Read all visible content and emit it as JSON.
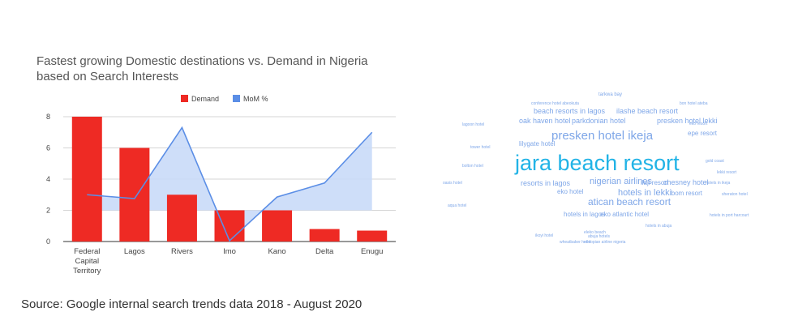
{
  "chart_data": {
    "type": "bar",
    "title_lines": [
      "Fastest growing Domestic destinations vs. Demand in Nigeria",
      "based on Search Interests"
    ],
    "categories": [
      [
        "Federal",
        "Capital",
        "Territory"
      ],
      [
        "Lagos"
      ],
      [
        "Rivers"
      ],
      [
        "Imo"
      ],
      [
        "Kano"
      ],
      [
        "Delta"
      ],
      [
        "Enugu"
      ]
    ],
    "series": [
      {
        "name": "Demand",
        "type": "bar",
        "color": "#ee2a24",
        "values": [
          8,
          6,
          3,
          2,
          2,
          0.8,
          0.7
        ]
      },
      {
        "name": "MoM %",
        "type": "line",
        "color": "#5b8ee6",
        "fill": "#c9daf8",
        "baseline": 2,
        "values": [
          3,
          2.75,
          7.3,
          0.05,
          2.85,
          3.75,
          7
        ]
      }
    ],
    "y_ticks": [
      "0",
      "2",
      "4",
      "6",
      "8"
    ],
    "ylim": [
      0,
      8.5
    ],
    "grid": true,
    "legend_position": "top"
  },
  "source": "Source: Google internal search trends data 2018 - August 2020",
  "word_cloud": {
    "color": "#7fa7e8",
    "highlight_color": "#21b3e6",
    "words": [
      {
        "text": "jara beach resort",
        "size": 27,
        "highlight": true
      },
      {
        "text": "presken hotel ikeja",
        "size": 15
      },
      {
        "text": "atican beach resort",
        "size": 12
      },
      {
        "text": "nigerian airlines",
        "size": 11
      },
      {
        "text": "hotels in lekki",
        "size": 11
      },
      {
        "text": "beach resorts in lagos",
        "size": 9
      },
      {
        "text": "ilashe beach resort",
        "size": 9
      },
      {
        "text": "oak haven hotel",
        "size": 9
      },
      {
        "text": "parkdonian hotel",
        "size": 9
      },
      {
        "text": "presken hotel lekki",
        "size": 9
      },
      {
        "text": "resorts in lagos",
        "size": 9
      },
      {
        "text": "chesney hotel",
        "size": 9
      },
      {
        "text": "lilygate hotel",
        "size": 8
      },
      {
        "text": "epe resort",
        "size": 8
      },
      {
        "text": "hotels in lagos",
        "size": 8
      },
      {
        "text": "eko atlantic hotel",
        "size": 8
      },
      {
        "text": "eko hotel",
        "size": 8
      },
      {
        "text": "ibom resort",
        "size": 8
      },
      {
        "text": "ilaji resort",
        "size": 8
      },
      {
        "text": "tarkwa bay",
        "size": 6
      },
      {
        "text": "conference hotel abeokuta",
        "size": 5
      },
      {
        "text": "bon hotel ateba",
        "size": 5
      },
      {
        "text": "lagoon hotel",
        "size": 5
      },
      {
        "text": "eko resort",
        "size": 5
      },
      {
        "text": "oasis hotel",
        "size": 5
      },
      {
        "text": "hotels in ikeja",
        "size": 5
      },
      {
        "text": "aqua hotel",
        "size": 5
      },
      {
        "text": "bolton hotel",
        "size": 5
      },
      {
        "text": "hotels in port harcourt",
        "size": 5
      },
      {
        "text": "eleko beach",
        "size": 5
      },
      {
        "text": "hotels in abuja",
        "size": 5
      },
      {
        "text": "tower hotel",
        "size": 5
      },
      {
        "text": "gold coast",
        "size": 5
      },
      {
        "text": "lekki resort",
        "size": 5
      },
      {
        "text": "sheraton hotel",
        "size": 5
      },
      {
        "text": "ikoyi hotel",
        "size": 5
      },
      {
        "text": "wheatbaker hotel",
        "size": 5
      },
      {
        "text": "abuja hotels",
        "size": 5
      },
      {
        "text": "ethiopian airline nigeria",
        "size": 5
      }
    ]
  }
}
